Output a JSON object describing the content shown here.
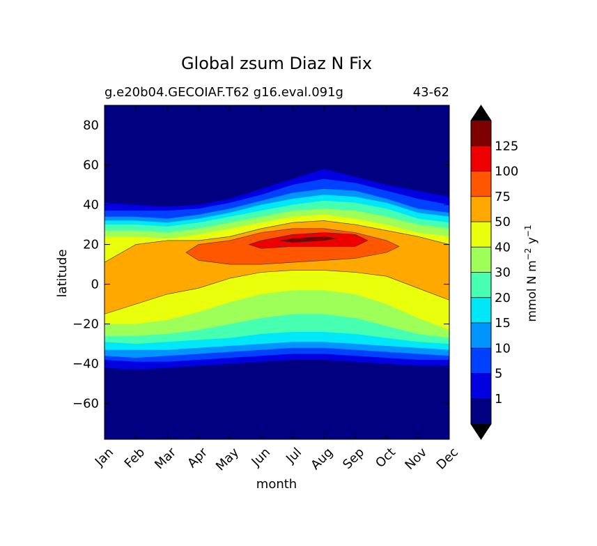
{
  "chart_data": {
    "type": "heatmap",
    "title": "Global zsum Diaz N Fix",
    "subtitle_left": "g.e20b04.GECOIAF.T62 g16.eval.091g",
    "subtitle_right": "43-62",
    "xlabel": "month",
    "ylabel": "latitude",
    "x_categories": [
      "Jan",
      "Feb",
      "Mar",
      "Apr",
      "May",
      "Jun",
      "Jul",
      "Aug",
      "Sep",
      "Oct",
      "Nov",
      "Dec"
    ],
    "yticks": [
      -60,
      -40,
      -20,
      0,
      20,
      40,
      60,
      80
    ],
    "ylim": [
      -78,
      90
    ],
    "grid": false,
    "colorbar": {
      "label": "mmol N m",
      "label_sup1": "−2",
      "label_mid": " y",
      "label_sup2": "−1",
      "levels": [
        1,
        5,
        10,
        15,
        20,
        30,
        40,
        50,
        75,
        100,
        125
      ],
      "level_labels": [
        "1",
        "5",
        "10",
        "15",
        "20",
        "30",
        "40",
        "50",
        "75",
        "100",
        "125"
      ],
      "colors": [
        "#000080",
        "#0000e0",
        "#0040ff",
        "#0094ff",
        "#00e8f8",
        "#47ffb0",
        "#9eff58",
        "#eaff0c",
        "#ffa800",
        "#ff5600",
        "#ee0000",
        "#7f0000"
      ],
      "extend": "both",
      "extend_colors": {
        "under": "#000000",
        "over": "#000000"
      }
    },
    "contours": {
      "months": [
        1,
        2,
        3,
        4,
        5,
        6,
        7,
        8,
        9,
        10,
        11,
        12
      ],
      "note_levels": [
        1,
        5,
        10,
        15,
        20,
        30,
        40,
        50,
        75,
        100,
        125
      ],
      "north_edges": [
        [
          41,
          40,
          39,
          40,
          43,
          48,
          53,
          58,
          54,
          50,
          47,
          44
        ],
        [
          37,
          37,
          37,
          38,
          41,
          45,
          50,
          53,
          51,
          47,
          43,
          40
        ],
        [
          34,
          34,
          33,
          35,
          38,
          42,
          46,
          48,
          47,
          43,
          38,
          36
        ],
        [
          32,
          32,
          31,
          33,
          36,
          40,
          43,
          45,
          44,
          41,
          36,
          34
        ],
        [
          30,
          30,
          29,
          31,
          34,
          37,
          40,
          42,
          41,
          38,
          33,
          31
        ],
        [
          27,
          27,
          26,
          28,
          31,
          34,
          37,
          38,
          37,
          34,
          30,
          28
        ],
        [
          24,
          24,
          23,
          25,
          28,
          31,
          34,
          35,
          33,
          30,
          26,
          24
        ],
        [
          11,
          20,
          22,
          22,
          24,
          28,
          31,
          32,
          30,
          27,
          24,
          20
        ],
        [
          null,
          null,
          null,
          20,
          22,
          26,
          28,
          28,
          26,
          22,
          null,
          null
        ],
        [
          null,
          null,
          null,
          null,
          null,
          22,
          25,
          26,
          25,
          null,
          null,
          null
        ],
        [
          null,
          null,
          null,
          null,
          null,
          null,
          23,
          24,
          null,
          null,
          null,
          null
        ]
      ],
      "south_edges": [
        [
          -42,
          -43,
          -42,
          -41,
          -40,
          -39,
          -38,
          -38,
          -39,
          -40,
          -41,
          -41
        ],
        [
          -38,
          -39,
          -39,
          -38,
          -37,
          -36,
          -35,
          -35,
          -36,
          -37,
          -38,
          -38
        ],
        [
          -36,
          -37,
          -36,
          -35,
          -34,
          -33,
          -32,
          -32,
          -33,
          -34,
          -35,
          -36
        ],
        [
          -33,
          -33,
          -33,
          -32,
          -31,
          -30,
          -29,
          -29,
          -30,
          -31,
          -32,
          -33
        ],
        [
          -29,
          -30,
          -29,
          -28,
          -27,
          -25,
          -24,
          -24,
          -25,
          -27,
          -29,
          -30
        ],
        [
          -26,
          -26,
          -25,
          -23,
          -20,
          -17,
          -15,
          -15,
          -17,
          -21,
          -25,
          -27
        ],
        [
          -20,
          -20,
          -18,
          -14,
          -9,
          -5,
          -3,
          -3,
          -5,
          -10,
          -17,
          -23
        ],
        [
          -15,
          -10,
          -5,
          -2,
          3,
          6,
          7,
          7,
          6,
          4,
          -2,
          -8
        ],
        [
          null,
          null,
          null,
          12,
          10,
          10,
          11,
          12,
          13,
          16,
          null,
          null
        ],
        [
          null,
          null,
          null,
          null,
          null,
          18,
          19,
          19,
          19,
          null,
          null,
          null
        ],
        [
          null,
          null,
          null,
          null,
          null,
          null,
          21,
          22,
          null,
          null,
          null,
          null
        ]
      ]
    }
  }
}
